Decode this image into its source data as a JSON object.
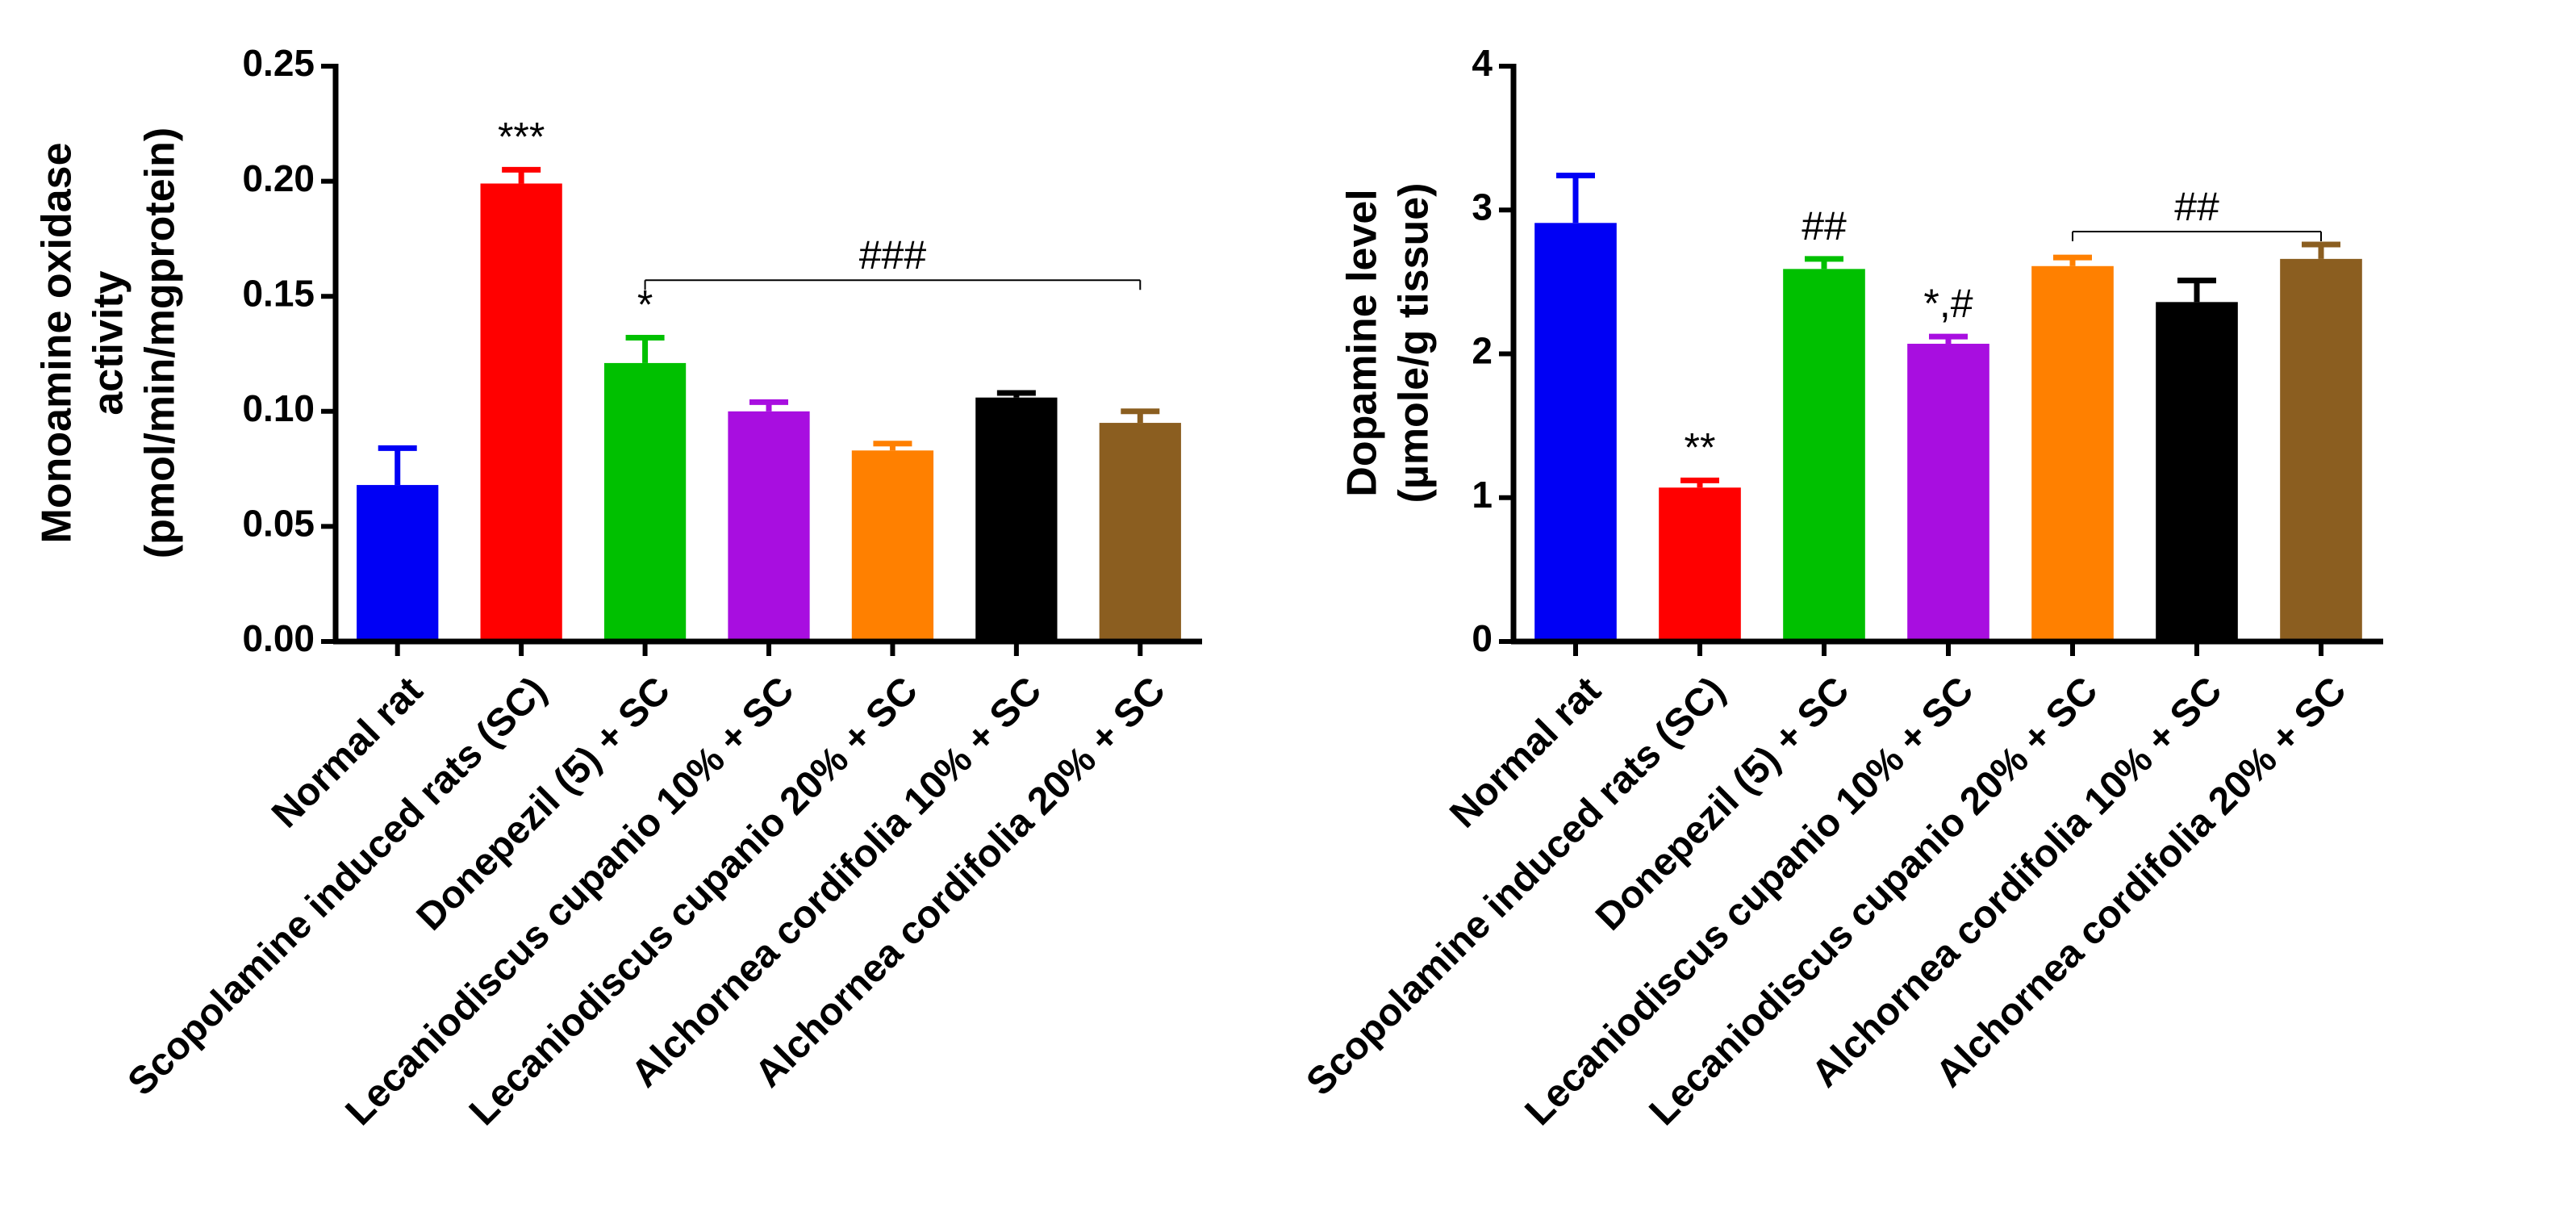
{
  "chart_data": [
    {
      "type": "bar",
      "ylabel_lines": [
        "Monoamine oxidase",
        "activity",
        "(pmol/min/mgprotein)"
      ],
      "categories": [
        "Normal rat",
        "Scopolamine induced rats (SC)",
        "Donepezil (5) + SC",
        "Lecaniodiscus cupanio 10% + SC",
        "Lecaniodiscus cupanio 20% + SC",
        "Alchornea cordifolia 10% + SC",
        "Alchornea cordifolia 20% + SC"
      ],
      "values": [
        0.068,
        0.199,
        0.121,
        0.1,
        0.083,
        0.106,
        0.095
      ],
      "errors": [
        0.016,
        0.006,
        0.011,
        0.004,
        0.003,
        0.002,
        0.005
      ],
      "colors": [
        "#0000f5",
        "#ff0000",
        "#00c000",
        "#a80ee0",
        "#ff8000",
        "#000000",
        "#8b5e20"
      ],
      "ylim": [
        0,
        0.25
      ],
      "yticks": [
        "0.00",
        "0.05",
        "0.10",
        "0.15",
        "0.20",
        "0.25"
      ],
      "bar_annotations": [
        {
          "index": 1,
          "text": "***"
        },
        {
          "index": 2,
          "text": "*"
        }
      ],
      "brackets": [
        {
          "from": 2,
          "to": 6,
          "y": 0.157,
          "text": "###"
        }
      ],
      "grid": false,
      "legend": "none"
    },
    {
      "type": "bar",
      "ylabel_lines": [
        "Dopamine level",
        "(µmole/g tissue)"
      ],
      "categories": [
        "Normal rat",
        "Scopolamine induced rats (SC)",
        "Donepezil (5) + SC",
        "Lecaniodiscus cupanio 10% + SC",
        "Lecaniodiscus cupanio 20% + SC",
        "Alchornea cordifolia 10% + SC",
        "Alchornea cordifolia 20% + SC"
      ],
      "values": [
        2.91,
        1.07,
        2.59,
        2.07,
        2.61,
        2.36,
        2.66
      ],
      "errors": [
        0.33,
        0.05,
        0.07,
        0.05,
        0.06,
        0.15,
        0.1
      ],
      "colors": [
        "#0000f5",
        "#ff0000",
        "#00c000",
        "#a80ee0",
        "#ff8000",
        "#000000",
        "#8b5e20"
      ],
      "ylim": [
        0,
        4
      ],
      "yticks": [
        "0",
        "1",
        "2",
        "3",
        "4"
      ],
      "bar_annotations": [
        {
          "index": 1,
          "text": "**"
        },
        {
          "index": 2,
          "text": "##"
        },
        {
          "index": 3,
          "text": "*,#"
        }
      ],
      "brackets": [
        {
          "from": 4,
          "to": 6,
          "y": 2.85,
          "text": "##"
        }
      ],
      "grid": false,
      "legend": "none"
    }
  ]
}
